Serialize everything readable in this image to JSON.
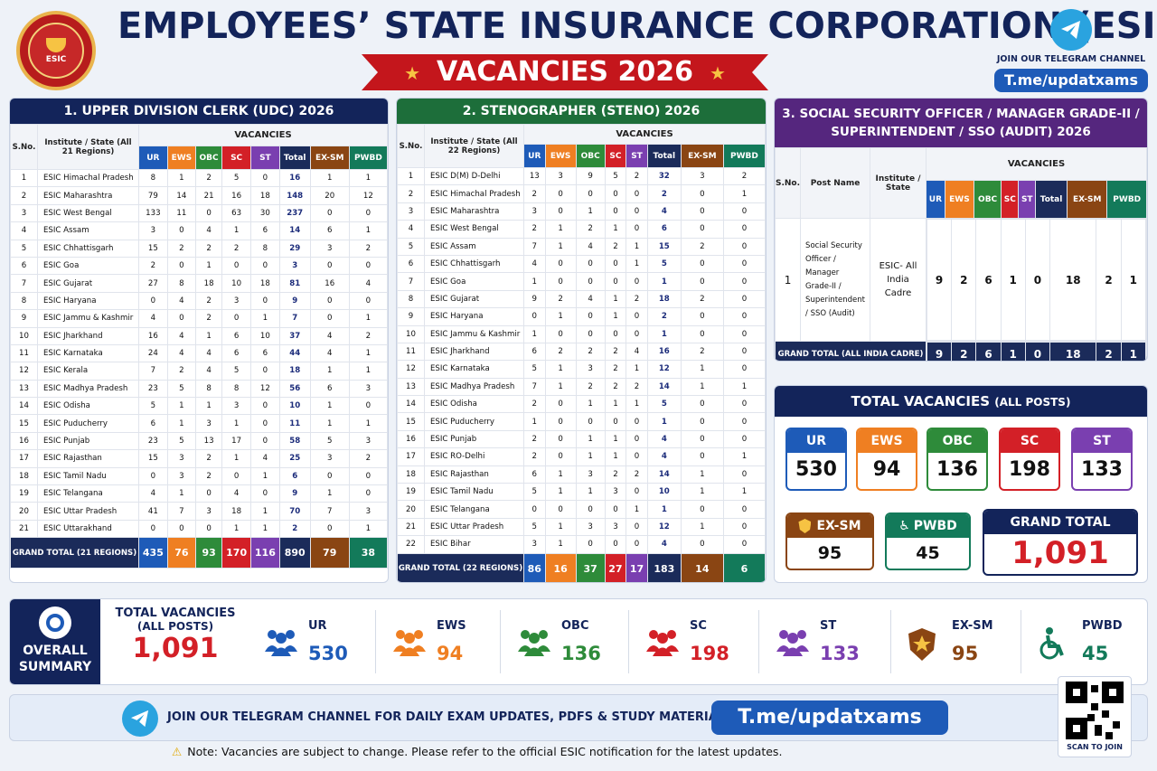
{
  "header": {
    "logo_text": "ESIC",
    "title": "EMPLOYEES’ STATE INSURANCE CORPORATION (ESIC)",
    "ribbon": "VACANCIES 2026",
    "telegram_label": "JOIN OUR TELEGRAM CHANNEL",
    "telegram_link": "T.me/updatxams"
  },
  "udc": {
    "title": "1. UPPER DIVISION CLERK (UDC) 2026",
    "h_sno": "S.No.",
    "h_inst": "Institute / State (All 21 Regions)",
    "h_vac": "VACANCIES",
    "cols": [
      "UR",
      "EWS",
      "OBC",
      "SC",
      "ST",
      "Total",
      "EX-SM",
      "PWBD"
    ],
    "rows": [
      [
        "1",
        "ESIC Himachal Pradesh",
        "8",
        "1",
        "2",
        "5",
        "0",
        "16",
        "1",
        "1"
      ],
      [
        "2",
        "ESIC Maharashtra",
        "79",
        "14",
        "21",
        "16",
        "18",
        "148",
        "20",
        "12"
      ],
      [
        "3",
        "ESIC West Bengal",
        "133",
        "11",
        "0",
        "63",
        "30",
        "237",
        "0",
        "0"
      ],
      [
        "4",
        "ESIC Assam",
        "3",
        "0",
        "4",
        "1",
        "6",
        "14",
        "6",
        "1"
      ],
      [
        "5",
        "ESIC Chhattisgarh",
        "15",
        "2",
        "2",
        "2",
        "8",
        "29",
        "3",
        "2"
      ],
      [
        "6",
        "ESIC Goa",
        "2",
        "0",
        "1",
        "0",
        "0",
        "3",
        "0",
        "0"
      ],
      [
        "7",
        "ESIC Gujarat",
        "27",
        "8",
        "18",
        "10",
        "18",
        "81",
        "16",
        "4"
      ],
      [
        "8",
        "ESIC Haryana",
        "0",
        "4",
        "2",
        "3",
        "0",
        "9",
        "0",
        "0"
      ],
      [
        "9",
        "ESIC Jammu & Kashmir",
        "4",
        "0",
        "2",
        "0",
        "1",
        "7",
        "0",
        "1"
      ],
      [
        "10",
        "ESIC Jharkhand",
        "16",
        "4",
        "1",
        "6",
        "10",
        "37",
        "4",
        "2"
      ],
      [
        "11",
        "ESIC Karnataka",
        "24",
        "4",
        "4",
        "6",
        "6",
        "44",
        "4",
        "1"
      ],
      [
        "12",
        "ESIC Kerala",
        "7",
        "2",
        "4",
        "5",
        "0",
        "18",
        "1",
        "1"
      ],
      [
        "13",
        "ESIC Madhya Pradesh",
        "23",
        "5",
        "8",
        "8",
        "12",
        "56",
        "6",
        "3"
      ],
      [
        "14",
        "ESIC Odisha",
        "5",
        "1",
        "1",
        "3",
        "0",
        "10",
        "1",
        "0"
      ],
      [
        "15",
        "ESIC Puducherry",
        "6",
        "1",
        "3",
        "1",
        "0",
        "11",
        "1",
        "1"
      ],
      [
        "16",
        "ESIC Punjab",
        "23",
        "5",
        "13",
        "17",
        "0",
        "58",
        "5",
        "3"
      ],
      [
        "17",
        "ESIC Rajasthan",
        "15",
        "3",
        "2",
        "1",
        "4",
        "25",
        "3",
        "2"
      ],
      [
        "18",
        "ESIC Tamil Nadu",
        "0",
        "3",
        "2",
        "0",
        "1",
        "6",
        "0",
        "0"
      ],
      [
        "19",
        "ESIC Telangana",
        "4",
        "1",
        "0",
        "4",
        "0",
        "9",
        "1",
        "0"
      ],
      [
        "20",
        "ESIC Uttar Pradesh",
        "41",
        "7",
        "3",
        "18",
        "1",
        "70",
        "7",
        "3"
      ],
      [
        "21",
        "ESIC Uttarakhand",
        "0",
        "0",
        "0",
        "1",
        "1",
        "2",
        "0",
        "1"
      ]
    ],
    "gt_label": "GRAND TOTAL (21 REGIONS)",
    "gt": [
      "435",
      "76",
      "93",
      "170",
      "116",
      "890",
      "79",
      "38"
    ]
  },
  "steno": {
    "title": "2. STENOGRAPHER (STENO) 2026",
    "h_sno": "S.No.",
    "h_inst": "Institute / State (All 22 Regions)",
    "h_vac": "VACANCIES",
    "cols": [
      "UR",
      "EWS",
      "OBC",
      "SC",
      "ST",
      "Total",
      "EX-SM",
      "PWBD"
    ],
    "rows": [
      [
        "1",
        "ESIC D(M) D-Delhi",
        "13",
        "3",
        "9",
        "5",
        "2",
        "32",
        "3",
        "2"
      ],
      [
        "2",
        "ESIC Himachal Pradesh",
        "2",
        "0",
        "0",
        "0",
        "0",
        "2",
        "0",
        "1"
      ],
      [
        "3",
        "ESIC Maharashtra",
        "3",
        "0",
        "1",
        "0",
        "0",
        "4",
        "0",
        "0"
      ],
      [
        "4",
        "ESIC West Bengal",
        "2",
        "1",
        "2",
        "1",
        "0",
        "6",
        "0",
        "0"
      ],
      [
        "5",
        "ESIC Assam",
        "7",
        "1",
        "4",
        "2",
        "1",
        "15",
        "2",
        "0"
      ],
      [
        "6",
        "ESIC Chhattisgarh",
        "4",
        "0",
        "0",
        "0",
        "1",
        "5",
        "0",
        "0"
      ],
      [
        "7",
        "ESIC Goa",
        "1",
        "0",
        "0",
        "0",
        "0",
        "1",
        "0",
        "0"
      ],
      [
        "8",
        "ESIC Gujarat",
        "9",
        "2",
        "4",
        "1",
        "2",
        "18",
        "2",
        "0"
      ],
      [
        "9",
        "ESIC Haryana",
        "0",
        "1",
        "0",
        "1",
        "0",
        "2",
        "0",
        "0"
      ],
      [
        "10",
        "ESIC Jammu & Kashmir",
        "1",
        "0",
        "0",
        "0",
        "0",
        "1",
        "0",
        "0"
      ],
      [
        "11",
        "ESIC Jharkhand",
        "6",
        "2",
        "2",
        "2",
        "4",
        "16",
        "2",
        "0"
      ],
      [
        "12",
        "ESIC Karnataka",
        "5",
        "1",
        "3",
        "2",
        "1",
        "12",
        "1",
        "0"
      ],
      [
        "13",
        "ESIC Madhya Pradesh",
        "7",
        "1",
        "2",
        "2",
        "2",
        "14",
        "1",
        "1"
      ],
      [
        "14",
        "ESIC Odisha",
        "2",
        "0",
        "1",
        "1",
        "1",
        "5",
        "0",
        "0"
      ],
      [
        "15",
        "ESIC Puducherry",
        "1",
        "0",
        "0",
        "0",
        "0",
        "1",
        "0",
        "0"
      ],
      [
        "16",
        "ESIC Punjab",
        "2",
        "0",
        "1",
        "1",
        "0",
        "4",
        "0",
        "0"
      ],
      [
        "17",
        "ESIC RO-Delhi",
        "2",
        "0",
        "1",
        "1",
        "0",
        "4",
        "0",
        "1"
      ],
      [
        "18",
        "ESIC Rajasthan",
        "6",
        "1",
        "3",
        "2",
        "2",
        "14",
        "1",
        "0"
      ],
      [
        "19",
        "ESIC Tamil Nadu",
        "5",
        "1",
        "1",
        "3",
        "0",
        "10",
        "1",
        "1"
      ],
      [
        "20",
        "ESIC Telangana",
        "0",
        "0",
        "0",
        "0",
        "1",
        "1",
        "0",
        "0"
      ],
      [
        "21",
        "ESIC Uttar Pradesh",
        "5",
        "1",
        "3",
        "3",
        "0",
        "12",
        "1",
        "0"
      ],
      [
        "22",
        "ESIC Bihar",
        "3",
        "1",
        "0",
        "0",
        "0",
        "4",
        "0",
        "0"
      ]
    ],
    "gt_label": "GRAND TOTAL (22 REGIONS)",
    "gt": [
      "86",
      "16",
      "37",
      "27",
      "17",
      "183",
      "14",
      "6"
    ]
  },
  "sso": {
    "title": "3. SOCIAL SECURITY OFFICER / MANAGER GRADE-II / SUPERINTENDENT / SSO (AUDIT) 2026",
    "h_sno": "S.No.",
    "h_post": "Post Name",
    "h_inst": "Institute / State",
    "h_vac": "VACANCIES",
    "cols": [
      "UR",
      "EWS",
      "OBC",
      "SC",
      "ST",
      "Total",
      "EX-SM",
      "PWBD"
    ],
    "row": {
      "sno": "1",
      "post": "Social Security Officer / Manager Grade-II / Superintendent / SSO (Audit)",
      "inst": "ESIC- All India Cadre",
      "vals": [
        "9",
        "2",
        "6",
        "1",
        "0",
        "18",
        "2",
        "1"
      ]
    },
    "gt_label": "GRAND TOTAL (ALL INDIA CADRE)",
    "gt": [
      "9",
      "2",
      "6",
      "1",
      "0",
      "18",
      "2",
      "1"
    ]
  },
  "totals": {
    "title": "TOTAL VACANCIES",
    "title_sub": "(ALL POSTS)",
    "ur_label": "UR",
    "ur": "530",
    "ews_label": "EWS",
    "ews": "94",
    "obc_label": "OBC",
    "obc": "136",
    "sc_label": "SC",
    "sc": "198",
    "st_label": "ST",
    "st": "133",
    "exsm_label": "EX-SM",
    "exsm": "95",
    "pwbd_label": "PWBD",
    "pwbd": "45",
    "grand_label": "GRAND TOTAL",
    "grand": "1,091"
  },
  "summary": {
    "label_line1": "OVERALL",
    "label_line2": "SUMMARY",
    "tv_label1": "TOTAL VACANCIES",
    "tv_label2": "(ALL POSTS)",
    "tv_value": "1,091",
    "items": [
      {
        "label": "UR",
        "value": "530",
        "color": "#1e5bb8"
      },
      {
        "label": "EWS",
        "value": "94",
        "color": "#ef7f22"
      },
      {
        "label": "OBC",
        "value": "136",
        "color": "#2e8b3a"
      },
      {
        "label": "SC",
        "value": "198",
        "color": "#d32027"
      },
      {
        "label": "ST",
        "value": "133",
        "color": "#7a3fb0"
      },
      {
        "label": "EX-SM",
        "value": "95",
        "color": "#8a4513"
      },
      {
        "label": "PWBD",
        "value": "45",
        "color": "#137a5a"
      }
    ]
  },
  "footer": {
    "join_text": "JOIN OUR TELEGRAM CHANNEL FOR DAILY EXAM UPDATES, PDFS & STUDY MATERIAL",
    "link": "T.me/updatxams",
    "qr_label": "SCAN TO JOIN",
    "note": "Note: Vacancies are subject to change. Please refer to the official ESIC notification for the latest updates."
  }
}
